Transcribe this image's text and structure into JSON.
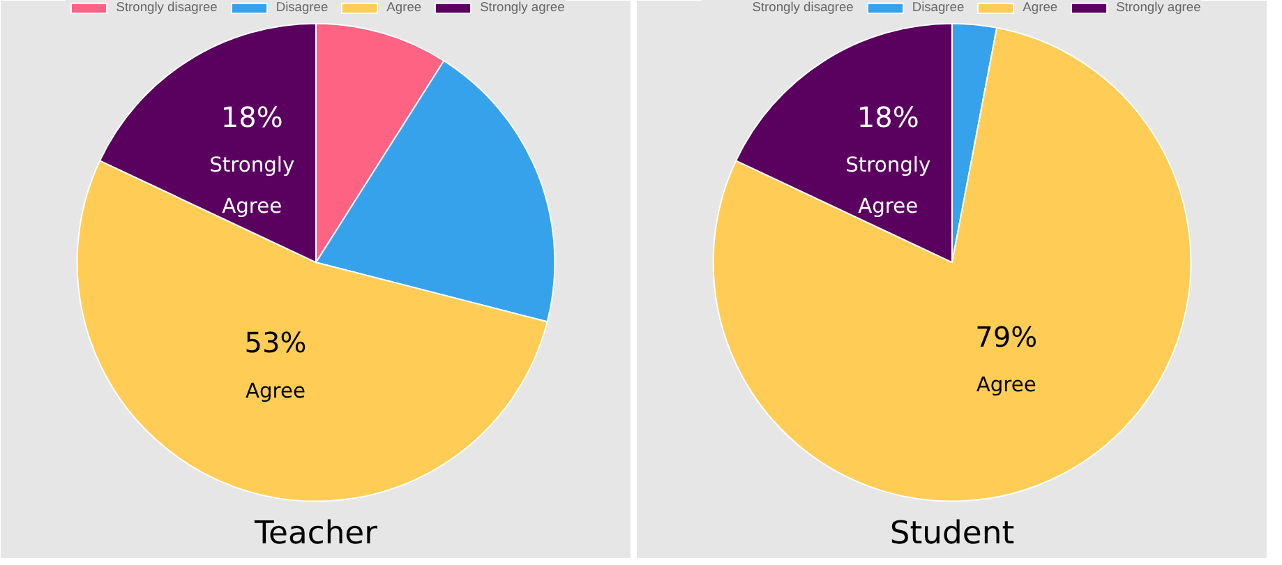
{
  "chart_data": [
    {
      "type": "pie",
      "title": "Teacher",
      "categories": [
        "Strongly disagree",
        "Disagree",
        "Agree",
        "Strongly agree"
      ],
      "values": [
        9,
        20,
        53,
        18
      ],
      "colors": [
        "#ff6384",
        "#36a2eb",
        "#ffcd56",
        "#5a005f"
      ],
      "value_labels": [
        null,
        null,
        "53%\nAgree",
        "18%\nStrongly\nAgree"
      ],
      "legend": "top"
    },
    {
      "type": "pie",
      "title": "Student",
      "categories": [
        "Strongly disagree",
        "Disagree",
        "Agree",
        "Strongly agree"
      ],
      "values": [
        0,
        3,
        79,
        18
      ],
      "colors": [
        "#ff6384",
        "#36a2eb",
        "#ffcd56",
        "#5a005f"
      ],
      "value_labels": [
        null,
        null,
        "79%\nAgree",
        "18%\nStrongly\nAgree"
      ],
      "legend": "top"
    }
  ]
}
